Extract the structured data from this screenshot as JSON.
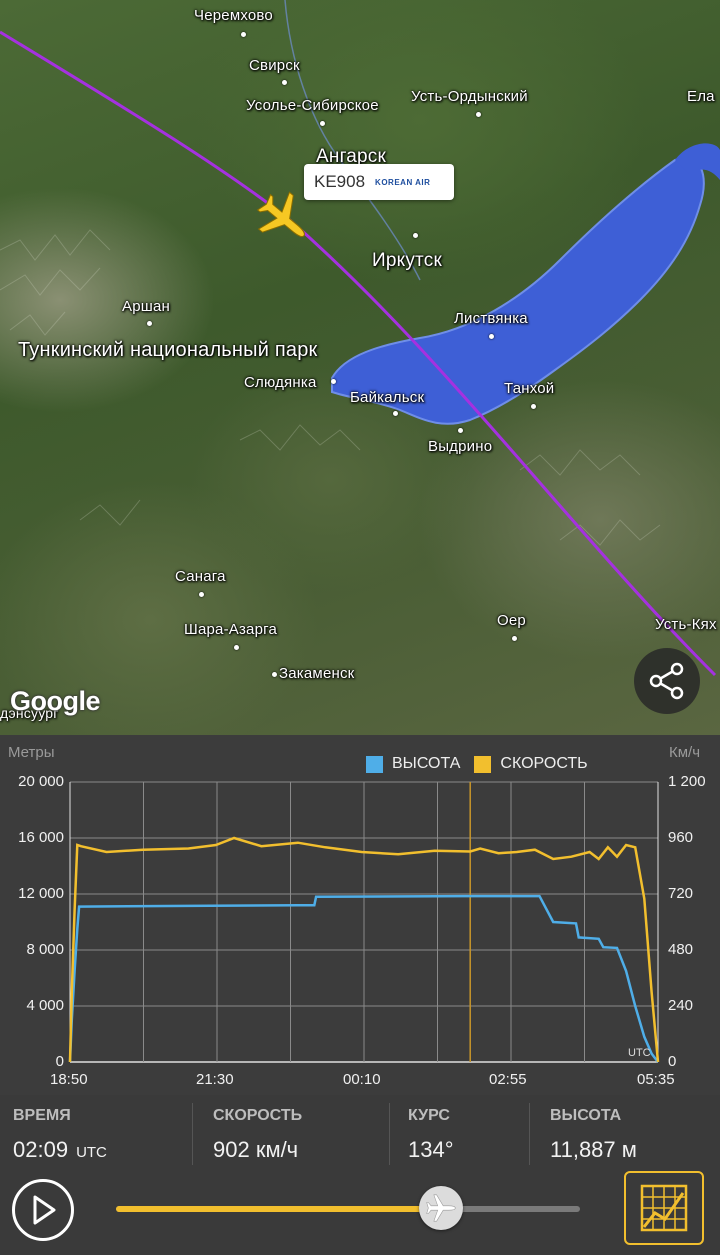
{
  "map": {
    "places": [
      {
        "name": "Черемхово",
        "style": "place"
      },
      {
        "name": "Свирск",
        "style": "place"
      },
      {
        "name": "Усолье-Сибирское",
        "style": "place"
      },
      {
        "name": "Усть-Ордынский",
        "style": "place"
      },
      {
        "name": "Ела",
        "style": "place"
      },
      {
        "name": "Ангарск",
        "style": "place mid"
      },
      {
        "name": "Иркутск",
        "style": "place mid"
      },
      {
        "name": "Аршан",
        "style": "place"
      },
      {
        "name": "Листвянка",
        "style": "place"
      },
      {
        "name": "Слюдянка",
        "style": "place"
      },
      {
        "name": "Байкальск",
        "style": "place"
      },
      {
        "name": "Танхой",
        "style": "place"
      },
      {
        "name": "Выдрино",
        "style": "place"
      },
      {
        "name": "Санага",
        "style": "place"
      },
      {
        "name": "Шара-Азарга",
        "style": "place"
      },
      {
        "name": "Оер",
        "style": "place"
      },
      {
        "name": "Усть-Кях",
        "style": "place"
      },
      {
        "name": "Закаменск",
        "style": "place"
      },
      {
        "name": "дэнсуург",
        "style": "place"
      }
    ],
    "park_label": "Тункинский национальный парк",
    "flight_label": "KE908",
    "airline_logo_text": "KOREAN AIR",
    "map_provider": "Google"
  },
  "chart": {
    "left_unit": "Метры",
    "right_unit": "Км/ч",
    "legend": [
      {
        "label": "ВЫСОТА",
        "color": "#4faee8"
      },
      {
        "label": "СКОРОСТЬ",
        "color": "#f2bf2e"
      }
    ],
    "y_left_ticks": [
      "20 000",
      "16 000",
      "12 000",
      "8 000",
      "4 000",
      "0"
    ],
    "y_right_ticks": [
      "1 200",
      "960",
      "720",
      "480",
      "240",
      "0"
    ],
    "x_ticks": [
      "18:50",
      "21:30",
      "00:10",
      "02:55",
      "05:35"
    ],
    "utc_tag": "UTC"
  },
  "chart_data": {
    "type": "line",
    "x_ticks": [
      "18:50",
      "21:30",
      "00:10",
      "02:55",
      "05:35"
    ],
    "y_left": {
      "label": "Метры",
      "range": [
        0,
        20000
      ]
    },
    "y_right": {
      "label": "Км/ч",
      "range": [
        0,
        1200
      ]
    },
    "grid": true,
    "legend_position": "top-right",
    "cursor_time": "02:09",
    "series": [
      {
        "name": "ВЫСОТА",
        "axis": "left",
        "color": "#4faee8",
        "points": [
          [
            "18:50",
            0
          ],
          [
            "18:52",
            3000
          ],
          [
            "18:55",
            6500
          ],
          [
            "18:58",
            9500
          ],
          [
            "19:00",
            11100
          ],
          [
            "21:00",
            11150
          ],
          [
            "23:00",
            11200
          ],
          [
            "23:18",
            11200
          ],
          [
            "23:20",
            11800
          ],
          [
            "02:00",
            11850
          ],
          [
            "03:25",
            11850
          ],
          [
            "03:40",
            10000
          ],
          [
            "04:05",
            9900
          ],
          [
            "04:08",
            8900
          ],
          [
            "04:30",
            8800
          ],
          [
            "04:35",
            8200
          ],
          [
            "04:50",
            8150
          ],
          [
            "05:00",
            6500
          ],
          [
            "05:10",
            4000
          ],
          [
            "05:20",
            1800
          ],
          [
            "05:28",
            600
          ],
          [
            "05:35",
            0
          ]
        ]
      },
      {
        "name": "СКОРОСТЬ",
        "axis": "right",
        "color": "#f2bf2e",
        "points": [
          [
            "18:50",
            0
          ],
          [
            "18:52",
            300
          ],
          [
            "18:55",
            650
          ],
          [
            "18:58",
            930
          ],
          [
            "19:02",
            925
          ],
          [
            "19:30",
            900
          ],
          [
            "20:10",
            910
          ],
          [
            "21:00",
            915
          ],
          [
            "21:30",
            930
          ],
          [
            "21:50",
            960
          ],
          [
            "22:20",
            925
          ],
          [
            "23:00",
            940
          ],
          [
            "23:30",
            920
          ],
          [
            "00:10",
            900
          ],
          [
            "00:50",
            890
          ],
          [
            "01:30",
            905
          ],
          [
            "02:09",
            902
          ],
          [
            "02:20",
            915
          ],
          [
            "02:40",
            895
          ],
          [
            "03:00",
            900
          ],
          [
            "03:20",
            910
          ],
          [
            "03:40",
            870
          ],
          [
            "04:00",
            880
          ],
          [
            "04:20",
            900
          ],
          [
            "04:30",
            870
          ],
          [
            "04:40",
            920
          ],
          [
            "04:50",
            880
          ],
          [
            "05:00",
            930
          ],
          [
            "05:10",
            920
          ],
          [
            "05:20",
            700
          ],
          [
            "05:28",
            300
          ],
          [
            "05:35",
            0
          ]
        ]
      }
    ]
  },
  "info": {
    "time_label": "ВРЕМЯ",
    "time_value": "02:09",
    "time_unit": "UTC",
    "speed_label": "СКОРОСТЬ",
    "speed_value": "902 км/ч",
    "heading_label": "КУРС",
    "heading_value": "134°",
    "altitude_label": "ВЫСОТА",
    "altitude_value": "11,887 м"
  },
  "playback": {
    "progress": 0.7,
    "accent_color": "#f2bf2e"
  },
  "icons": {
    "share": "share-icon",
    "play": "play-icon",
    "plane": "plane-icon",
    "chart_toggle": "chart-icon"
  }
}
